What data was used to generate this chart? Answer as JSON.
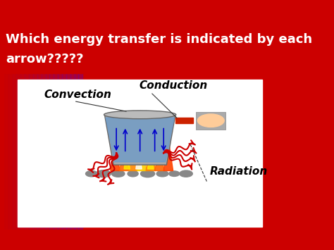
{
  "title_line1": "Which energy transfer is indicated by each",
  "title_line2": "arrow?????",
  "title_bg_color": "#cc0000",
  "title_text_color": "#ffffff",
  "content_bg_color": "#ffffff",
  "outer_bg_color_left": "#8b0040",
  "outer_bg_color_right": "#0000cc",
  "label_convection": "Convection",
  "label_conduction": "Conduction",
  "label_radiation": "Radiation",
  "label_color": "#000000",
  "radiation_color": "#cc0000",
  "convection_color": "#0000cc",
  "flame_colors": [
    "#ff4400",
    "#ff8800",
    "#ffcc00"
  ],
  "figsize": [
    4.74,
    3.55
  ],
  "dpi": 100
}
